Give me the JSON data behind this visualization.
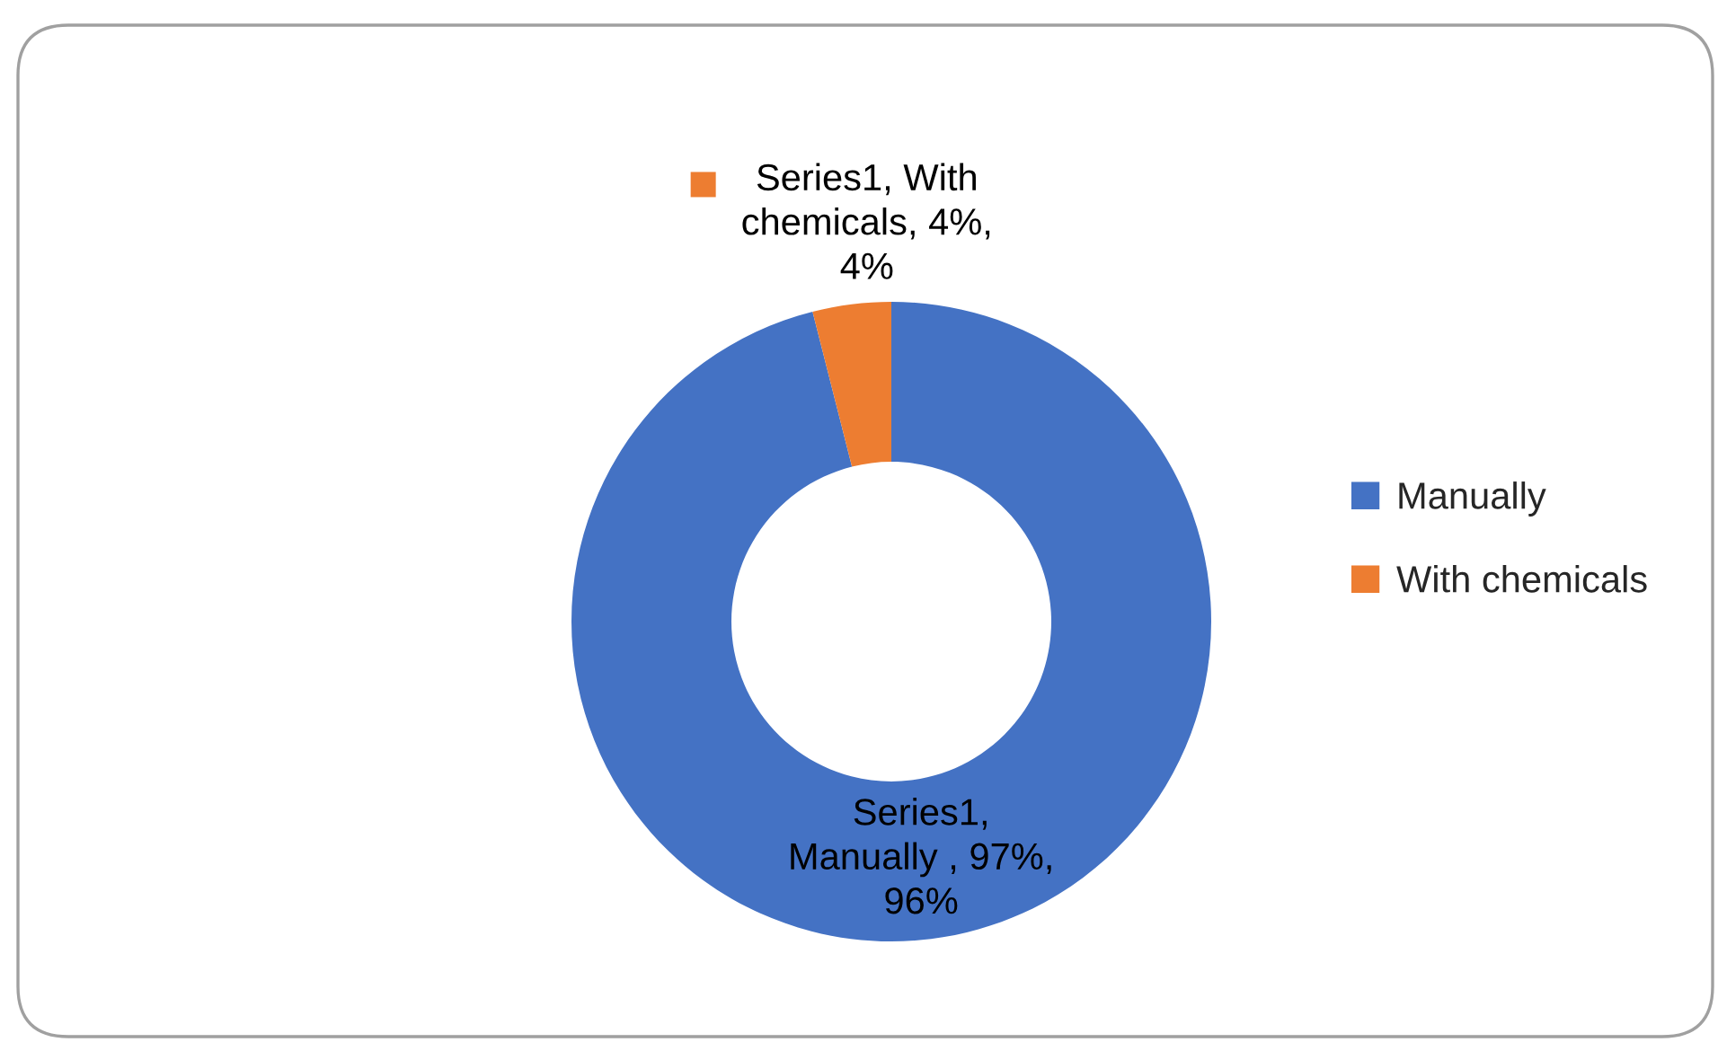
{
  "chart_data": {
    "type": "donut",
    "categories": [
      "Manually",
      "With chemicals"
    ],
    "values": [
      97,
      4
    ],
    "colors": [
      "#4472c4",
      "#ed7d31"
    ],
    "value_labels": [
      "Series1, Manually , 97%, 96%",
      "Series1, With chemicals, 4%, 4%"
    ],
    "legend": "right"
  }
}
